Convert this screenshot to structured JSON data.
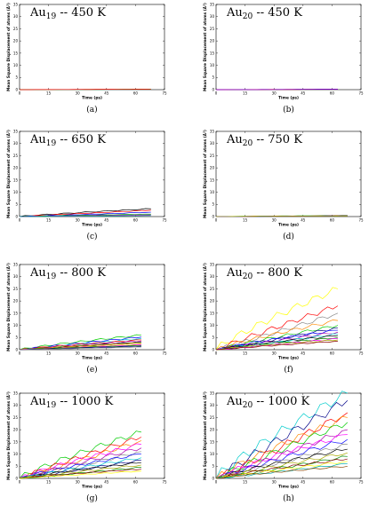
{
  "figure": {
    "xlabel": "Time (ps)",
    "ylabel": "Mean Square Displacement of atoms (Å²)",
    "xticks": [
      "0",
      "15",
      "30",
      "45",
      "60",
      "75"
    ],
    "yticks": [
      "0",
      "5",
      "10",
      "15",
      "20",
      "25",
      "30",
      "35"
    ]
  },
  "chart_data": [
    {
      "type": "line",
      "cluster": "Au",
      "atoms": "19",
      "temperature": "-- 450 K",
      "caption": "(a)",
      "xlim": [
        0,
        75
      ],
      "ylim": [
        0,
        35
      ],
      "endx": 68,
      "series_colors": [
        "#00aa00",
        "#ff0000"
      ],
      "series_end": [
        0.15,
        0.2
      ]
    },
    {
      "type": "line",
      "cluster": "Au",
      "atoms": "20",
      "temperature": "-- 450 K",
      "caption": "(b)",
      "xlim": [
        0,
        75
      ],
      "ylim": [
        0,
        35
      ],
      "endx": 63,
      "series_colors": [
        "#00aa00",
        "#ff0000",
        "#0000ff",
        "#aa00aa"
      ],
      "series_end": [
        0.1,
        0.15,
        0.2,
        0.1
      ]
    },
    {
      "type": "line",
      "cluster": "Au",
      "atoms": "19",
      "temperature": "-- 650 K",
      "caption": "(c)",
      "xlim": [
        0,
        75
      ],
      "ylim": [
        0,
        35
      ],
      "endx": 68,
      "series_colors": [
        "#000000",
        "#ff0000",
        "#0000ff",
        "#00aa00",
        "#aa00aa",
        "#00aaaa"
      ],
      "series_end": [
        3.2,
        2.6,
        1.8,
        1.0,
        0.7,
        0.4
      ]
    },
    {
      "type": "line",
      "cluster": "Au",
      "atoms": "20",
      "temperature": "-- 750 K",
      "caption": "(d)",
      "xlim": [
        0,
        75
      ],
      "ylim": [
        0,
        35
      ],
      "endx": 68,
      "series_colors": [
        "#00aa00",
        "#ff0000",
        "#0000ff",
        "#aaaa00"
      ],
      "series_end": [
        0.45,
        0.35,
        0.3,
        0.25
      ]
    },
    {
      "type": "line",
      "cluster": "Au",
      "atoms": "19",
      "temperature": "-- 800 K",
      "caption": "(e)",
      "xlim": [
        0,
        75
      ],
      "ylim": [
        0,
        35
      ],
      "endx": 63,
      "series_colors": [
        "#00cc00",
        "#0000ff",
        "#00cccc",
        "#ff0000",
        "#aa00aa",
        "#000000",
        "#aaaa00",
        "#ff8800",
        "#ff00ff",
        "#008800",
        "#000088",
        "#888888"
      ],
      "series_end": [
        6.0,
        5.2,
        4.6,
        4.0,
        3.6,
        3.2,
        2.8,
        2.4,
        2.0,
        1.7,
        1.4,
        1.1
      ]
    },
    {
      "type": "line",
      "cluster": "Au",
      "atoms": "20",
      "temperature": "-- 800 K",
      "caption": "(f)",
      "xlim": [
        0,
        75
      ],
      "ylim": [
        0,
        35
      ],
      "endx": 63,
      "series_colors": [
        "#ffff00",
        "#ff0000",
        "#888888",
        "#ff8800",
        "#00cc00",
        "#000088",
        "#0000ff",
        "#aa00aa",
        "#00cccc",
        "#000000",
        "#008800",
        "#ff00ff",
        "#aaaa00",
        "#880000"
      ],
      "series_end": [
        25,
        18,
        15,
        12,
        10,
        9,
        8,
        7.2,
        6.5,
        5.8,
        5.0,
        4.5,
        4.0,
        3.5
      ]
    },
    {
      "type": "line",
      "cluster": "Au",
      "atoms": "19",
      "temperature": "-- 1000 K",
      "caption": "(g)",
      "xlim": [
        0,
        75
      ],
      "ylim": [
        0,
        35
      ],
      "endx": 63,
      "series_colors": [
        "#00cc00",
        "#ff0000",
        "#ff8800",
        "#ff00ff",
        "#aa00aa",
        "#888888",
        "#0000ff",
        "#00cccc",
        "#000088",
        "#000000",
        "#aaaa00",
        "#008800",
        "#880000",
        "#ffff00"
      ],
      "series_end": [
        19,
        17,
        15.5,
        14,
        12.5,
        11,
        10,
        8.5,
        7.5,
        6.5,
        5.5,
        4.5,
        3.8,
        3.0
      ]
    },
    {
      "type": "line",
      "cluster": "Au",
      "atoms": "20",
      "temperature": "-- 1000 K",
      "caption": "(h)",
      "xlim": [
        0,
        75
      ],
      "ylim": [
        0,
        35
      ],
      "endx": 68,
      "series_colors": [
        "#00cccc",
        "#000088",
        "#ff0000",
        "#ff8800",
        "#00cc00",
        "#aa00aa",
        "#ff00ff",
        "#0000ff",
        "#888888",
        "#000000",
        "#aaaa00",
        "#008800",
        "#880000",
        "#ffff00",
        "#00aaaa",
        "#884400"
      ],
      "series_end": [
        35,
        32,
        27,
        25,
        23,
        20,
        18,
        16,
        14,
        12,
        10.5,
        9,
        8,
        7,
        6,
        5
      ]
    }
  ]
}
